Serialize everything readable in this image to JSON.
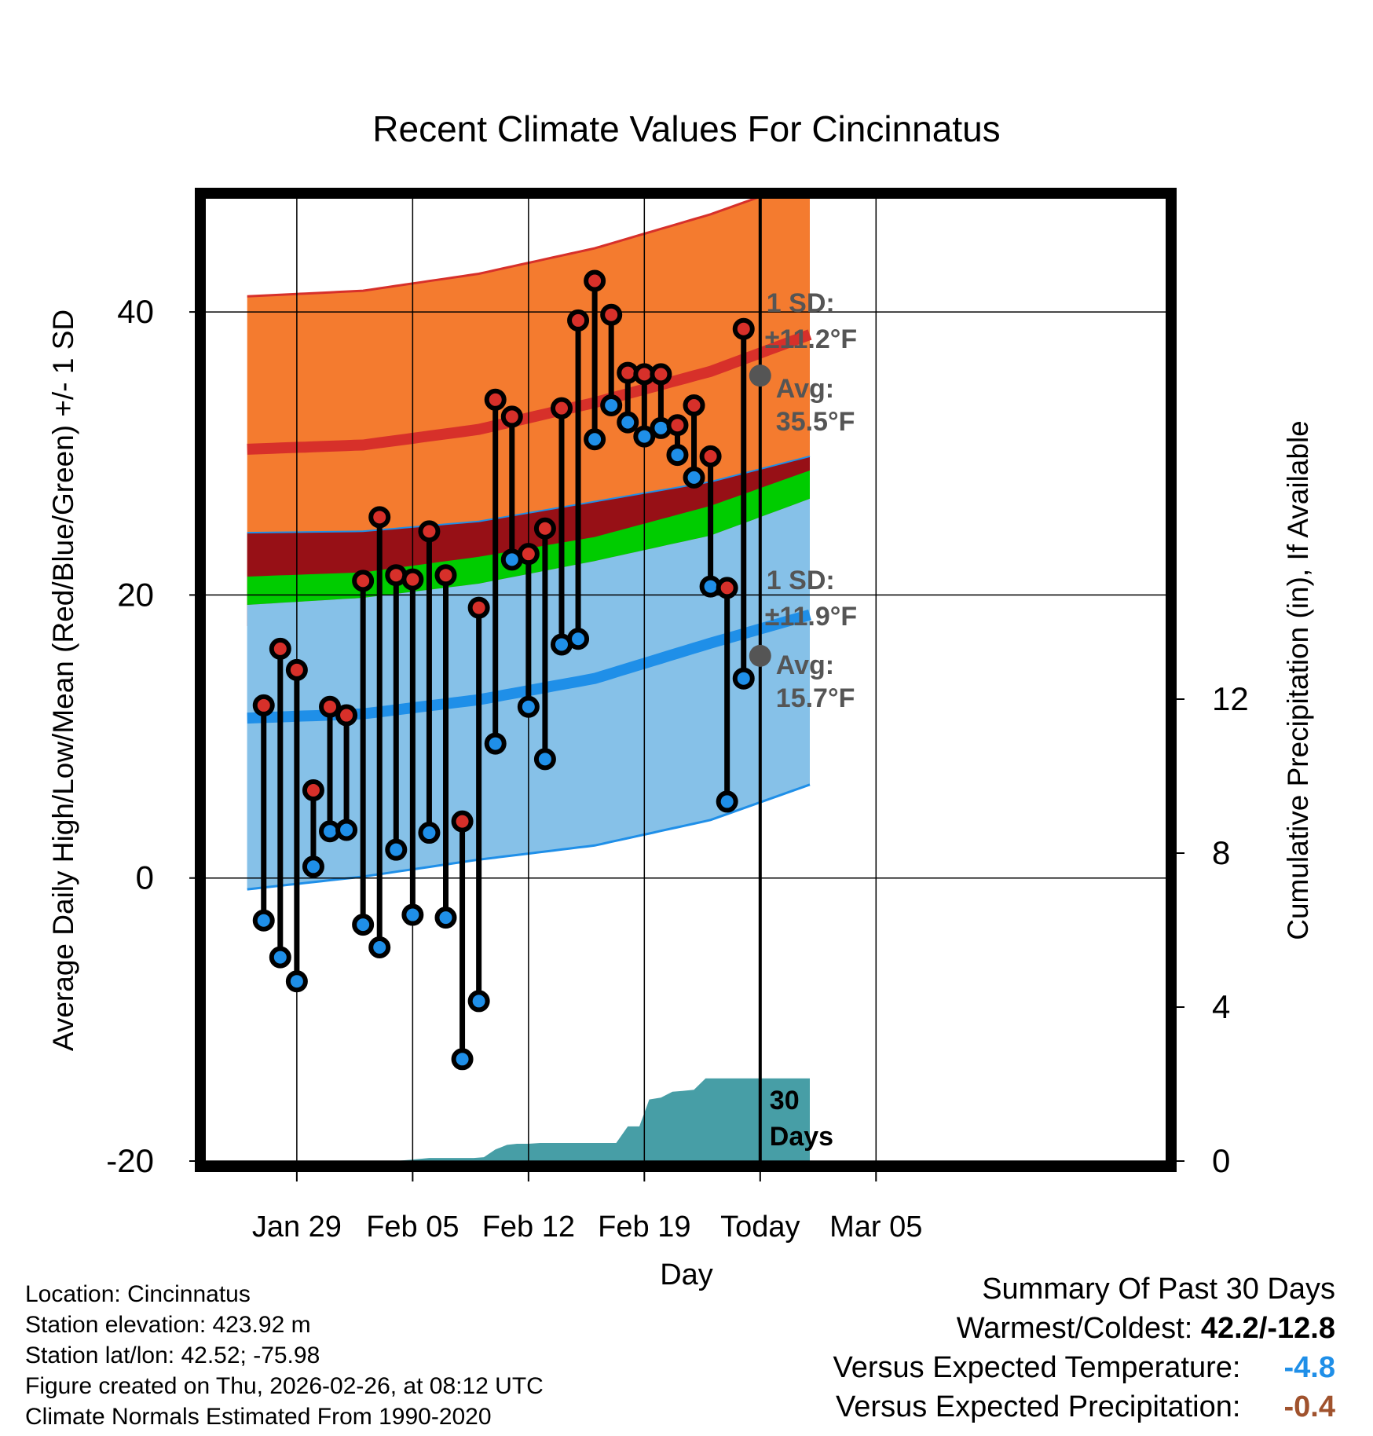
{
  "chart_data": {
    "type": "line",
    "title": "Recent Climate Values For Cincinnatus",
    "xlabel": "Day",
    "ylabel": "Average Daily High/Low/Mean (Red/Blue/Green) +/- 1 SD",
    "y2label": "Cumulative Precipitation (in), If Available",
    "ylim": [
      -20,
      48
    ],
    "y2lim": [
      0,
      25
    ],
    "xlim": [
      -5.5,
      52.5
    ],
    "x_tick_labels": [
      {
        "day": 0,
        "label": "Jan 29"
      },
      {
        "day": 7,
        "label": "Feb 05"
      },
      {
        "day": 14,
        "label": "Feb 12"
      },
      {
        "day": 21,
        "label": "Feb 19"
      },
      {
        "day": 28,
        "label": "Today"
      },
      {
        "day": 35,
        "label": "Mar 05"
      }
    ],
    "y_ticks": [
      -20,
      0,
      20,
      40
    ],
    "y2_ticks": [
      0,
      4,
      8,
      12
    ],
    "today_day": 28,
    "normals": {
      "days": [
        -3,
        4,
        11,
        18,
        25,
        31
      ],
      "high_mean": [
        30.3,
        30.6,
        31.7,
        33.6,
        35.8,
        38.4
      ],
      "high_sd_upper": [
        41.1,
        41.5,
        42.7,
        44.5,
        46.9,
        49.4
      ],
      "low_mean": [
        11.3,
        11.6,
        12.6,
        14.1,
        16.6,
        18.6
      ],
      "low_sd_lower": [
        -0.8,
        0.1,
        1.3,
        2.3,
        4.1,
        6.6
      ],
      "mean_upper": [
        21.3,
        21.6,
        22.7,
        24.1,
        26.3,
        28.8
      ],
      "mean_lower": [
        19.3,
        19.8,
        20.8,
        22.4,
        24.2,
        26.8
      ],
      "overlap_upper": [
        24.4,
        24.5,
        25.2,
        26.6,
        28.0,
        29.8
      ]
    },
    "series": [
      {
        "name": "Daily High",
        "color": "#d7302a",
        "values": [
          12.2,
          16.2,
          14.7,
          6.2,
          12.1,
          11.5,
          21.0,
          25.5,
          21.4,
          21.1,
          24.5,
          21.4,
          4.0,
          19.1,
          33.8,
          32.6,
          22.9,
          24.7,
          33.2,
          39.4,
          42.2,
          39.8,
          35.7,
          35.6,
          35.6,
          32.0,
          33.4,
          29.8,
          20.5,
          38.8
        ]
      },
      {
        "name": "Daily Low",
        "color": "#1f8fe8",
        "values": [
          -3.0,
          -5.6,
          -7.3,
          0.8,
          3.3,
          3.4,
          -3.3,
          -4.9,
          2.0,
          -2.6,
          3.2,
          -2.8,
          -12.8,
          -8.7,
          9.5,
          22.5,
          12.1,
          8.4,
          16.5,
          16.9,
          31.0,
          33.4,
          32.2,
          31.2,
          31.8,
          29.9,
          28.3,
          20.6,
          5.4,
          14.1
        ]
      }
    ],
    "precip_days": [
      -3.0,
      6.0,
      7.3,
      8.0,
      9.3,
      10.0,
      10.7,
      11.3,
      12.0,
      12.7,
      13.3,
      14.0,
      14.7,
      15.3,
      16.0,
      16.7,
      17.3,
      18.0,
      18.7,
      19.3,
      20.0,
      20.7,
      21.3,
      22.0,
      22.7,
      23.3,
      24.0,
      24.7,
      25.3,
      26.0,
      26.7,
      31.0
    ],
    "precip_cum": [
      0.0,
      0.0,
      0.05,
      0.08,
      0.08,
      0.08,
      0.08,
      0.1,
      0.3,
      0.42,
      0.45,
      0.45,
      0.47,
      0.47,
      0.47,
      0.47,
      0.47,
      0.47,
      0.47,
      0.47,
      0.9,
      0.9,
      1.6,
      1.65,
      1.8,
      1.82,
      1.85,
      2.15,
      2.15,
      2.15,
      2.15,
      2.15
    ],
    "annotations": {
      "high_sd": "1 SD:",
      "high_sd_value": "±11.2°F",
      "high_avg": "Avg:",
      "high_avg_value": "35.5°F",
      "high_avg_num": 35.5,
      "low_sd": "1 SD:",
      "low_sd_value": "±11.9°F",
      "low_avg": "Avg:",
      "low_avg_value": "15.7°F",
      "low_avg_num": 15.7,
      "window_number": "30",
      "window_label": "Days"
    },
    "colors": {
      "high_band": "#f47b2f",
      "high_line": "#d7302a",
      "low_band": "#86c1e8",
      "low_line": "#1f8fe8",
      "overlap": "#971016",
      "mean_band": "#00cc00",
      "precip": "#479ea6",
      "avg_marker": "#555555",
      "annotation_text": "#555555"
    }
  },
  "info": {
    "location": "Location: Cincinnatus",
    "elevation": "Station elevation: 423.92 m",
    "latlon": "Station lat/lon: 42.52; -75.98",
    "created": "Figure created on Thu, 2026-02-26, at 08:12 UTC",
    "normals": "Climate Normals Estimated From 1990-2020"
  },
  "summary": {
    "title": "Summary Of Past 30 Days",
    "warm_cold_label": "Warmest/Coldest:",
    "warm_cold_value": "42.2/-12.8",
    "temp_label": "Versus Expected Temperature:",
    "temp_value": "-4.8",
    "temp_color": "#1f8fe8",
    "precip_label": "Versus Expected Precipitation:",
    "precip_value": "-0.4",
    "precip_color": "#a0522d"
  }
}
